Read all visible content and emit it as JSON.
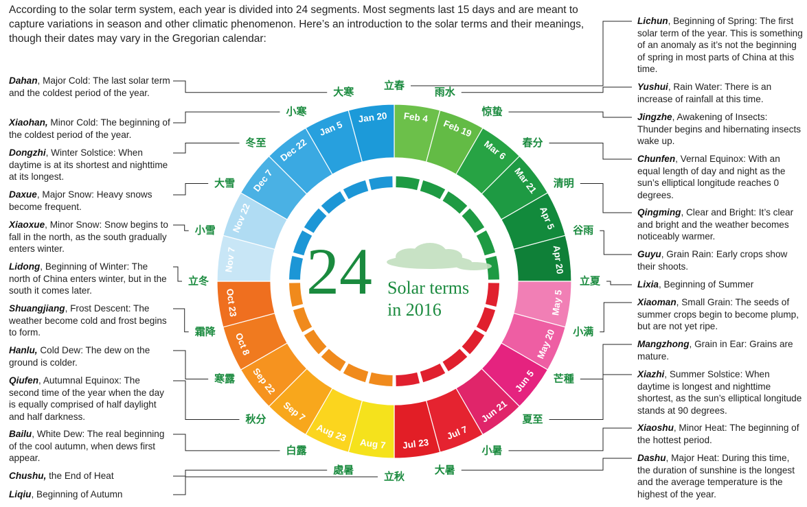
{
  "intro": "According to the solar term system, each year is divided into 24 segments. Most segments last 15 days and are meant to capture variations in season and other climatic phenomenon. Here’s an introduction to the solar terms and their meanings, though their dates may vary in the Gregorian calendar:",
  "center": {
    "number": "24",
    "line1": "Solar terms",
    "line2": "in 2016"
  },
  "terms": [
    {
      "cn": "立春",
      "date": "Feb 4",
      "name": "Lichun",
      "desc": ", Beginning of Spring: The first solar term of the year. This is something of an anomaly as it’s not the beginning of spring in most parts of China at this time.",
      "color": "#6cc04a"
    },
    {
      "cn": "雨水",
      "date": "Feb 19",
      "name": "Yushui",
      "desc": ", Rain Water: There is an increase of rainfall at this time.",
      "color": "#63bb45"
    },
    {
      "cn": "惊蛰",
      "date": "Mar 6",
      "name": "Jingzhe",
      "desc": ", Awakening of Insects: Thunder begins and hibernating insects wake up.",
      "color": "#27a344"
    },
    {
      "cn": "春分",
      "date": "Mar 21",
      "name": "Chunfen",
      "desc": ", Vernal Equinox: With an equal length of day and night as the sun’s elliptical longitude reaches 0 degrees.",
      "color": "#1e9a43"
    },
    {
      "cn": "清明",
      "date": "Apr 5",
      "name": "Qingming",
      "desc": ", Clear and Bright: It’s clear and bright and the weather becomes noticeably warmer.",
      "color": "#128a3c"
    },
    {
      "cn": "谷雨",
      "date": "Apr 20",
      "name": "Guyu",
      "desc": ", Grain Rain: Early crops show their shoots.",
      "color": "#0f8038"
    },
    {
      "cn": "立夏",
      "date": "May 5",
      "name": "Lixia",
      "desc": ", Beginning of Summer",
      "color": "#f17fb5"
    },
    {
      "cn": "小满",
      "date": "May 20",
      "name": "Xiaoman",
      "desc": ", Small Grain: The seeds of summer crops begin to become plump, but are not yet ripe.",
      "color": "#ee5ea3"
    },
    {
      "cn": "芒種",
      "date": "Jun 5",
      "name": "Mangzhong",
      "desc": ", Grain in Ear: Grains are mature.",
      "color": "#e5237f"
    },
    {
      "cn": "夏至",
      "date": "Jun 21",
      "name": "Xiazhi",
      "desc": ", Summer Solstice: When daytime is longest and nighttime shortest, as the sun’s elliptical longitude stands at 90 degrees.",
      "color": "#e0256a"
    },
    {
      "cn": "小暑",
      "date": "Jul 7",
      "name": "Xiaoshu",
      "desc": ", Minor Heat: The beginning of the hottest period.",
      "color": "#e52330"
    },
    {
      "cn": "大暑",
      "date": "Jul 23",
      "name": "Dashu",
      "desc": ", Major Heat: During this time, the duration of sunshine is the longest and the average temperature is the highest of the year.",
      "color": "#e21e26"
    },
    {
      "cn": "立秋",
      "date": "Aug 7",
      "name": "Liqiu",
      "desc": ", Beginning of Autumn",
      "color": "#f5e21c"
    },
    {
      "cn": "處暑",
      "date": "Aug 23",
      "name": "Chushu,",
      "desc": " the End of Heat",
      "color": "#fbd51e"
    },
    {
      "cn": "白露",
      "date": "Sep 7",
      "name": "Bailu",
      "desc": ", White Dew: The real beginning of the cool autumn, when dews first appear.",
      "color": "#f8a71c"
    },
    {
      "cn": "秋分",
      "date": "Sep 22",
      "name": "Qiufen",
      "desc": ", Autumnal Equinox: The second time of the year when the day is equally comprised of half daylight and half darkness.",
      "color": "#f6931f"
    },
    {
      "cn": "寒露",
      "date": "Oct 8",
      "name": "Hanlu,",
      "desc": " Cold Dew: The dew on the ground is colder.",
      "color": "#f07a1f"
    },
    {
      "cn": "霜降",
      "date": "Oct 23",
      "name": "Shuangjiang",
      "desc": ", Frost Descent: The weather become cold and frost begins to form.",
      "color": "#ef6f1f"
    },
    {
      "cn": "立冬",
      "date": "Nov 7",
      "name": "Lidong",
      "desc": ", Beginning of Winter: The north of China enters winter, but in the south it comes later.",
      "color": "#c8e6f6"
    },
    {
      "cn": "小雪",
      "date": "Nov 22",
      "name": "Xiaoxue",
      "desc": ", Minor Snow: Snow begins to fall in the north, as the south gradually enters winter.",
      "color": "#b0dcf3"
    },
    {
      "cn": "大雪",
      "date": "Dec 7",
      "name": "Daxue",
      "desc": ", Major Snow: Heavy snows become frequent.",
      "color": "#4ab1e4"
    },
    {
      "cn": "冬至",
      "date": "Dec 22",
      "name": "Dongzhi",
      "desc": ", Winter Solstice: When daytime is at its shortest and nighttime at its longest.",
      "color": "#3aa9e2"
    },
    {
      "cn": "小寒",
      "date": "Jan 5",
      "name": "Xiaohan,",
      "desc": " Minor Cold: The beginning of the coldest period of the year.",
      "color": "#27a0de"
    },
    {
      "cn": "大寒",
      "date": "Jan 20",
      "name": "Dahan",
      "desc": ", Major Cold: The last solar term and the coldest period of the year.",
      "color": "#1c9ad9"
    }
  ],
  "season_colors": {
    "spring": "#1e9a43",
    "summer": "#e0202e",
    "autumn": "#f08a1c",
    "winter": "#1c96d6"
  }
}
